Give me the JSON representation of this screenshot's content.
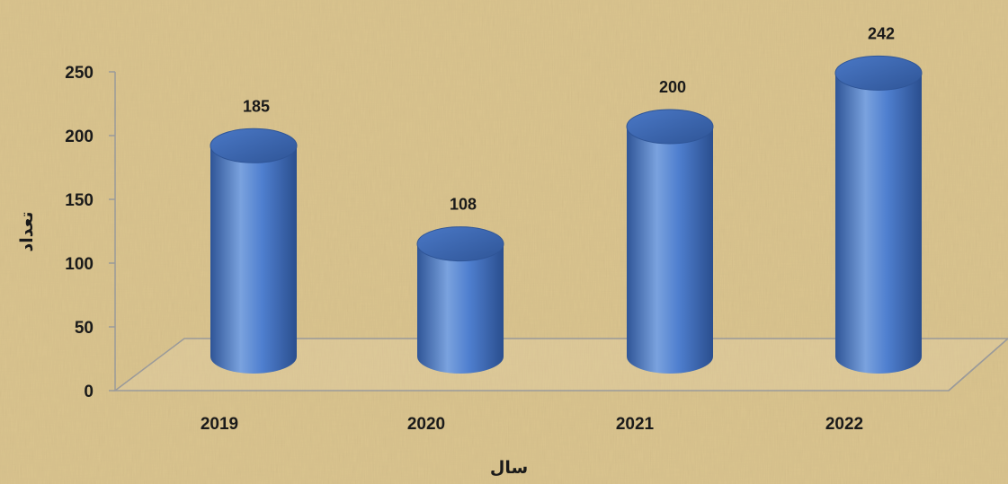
{
  "chart_data": {
    "type": "bar",
    "style": "3d-cylinder",
    "categories": [
      "2019",
      "2020",
      "2021",
      "2022"
    ],
    "values": [
      185,
      108,
      200,
      242
    ],
    "data_labels": [
      "185",
      "108",
      "200",
      "242"
    ],
    "xlabel": "سال",
    "ylabel": "تعداد",
    "ylim": [
      0,
      250
    ],
    "y_ticks": [
      0,
      50,
      100,
      150,
      200,
      250
    ],
    "grid": false,
    "legend": "none",
    "colors": {
      "bar": "#4472C4",
      "bar_light": "#7AA2DE",
      "bar_dark": "#2F5597",
      "bar_top": "#3A64B0",
      "floor_line": "#9a9a9a",
      "background": "#DCC690"
    }
  }
}
